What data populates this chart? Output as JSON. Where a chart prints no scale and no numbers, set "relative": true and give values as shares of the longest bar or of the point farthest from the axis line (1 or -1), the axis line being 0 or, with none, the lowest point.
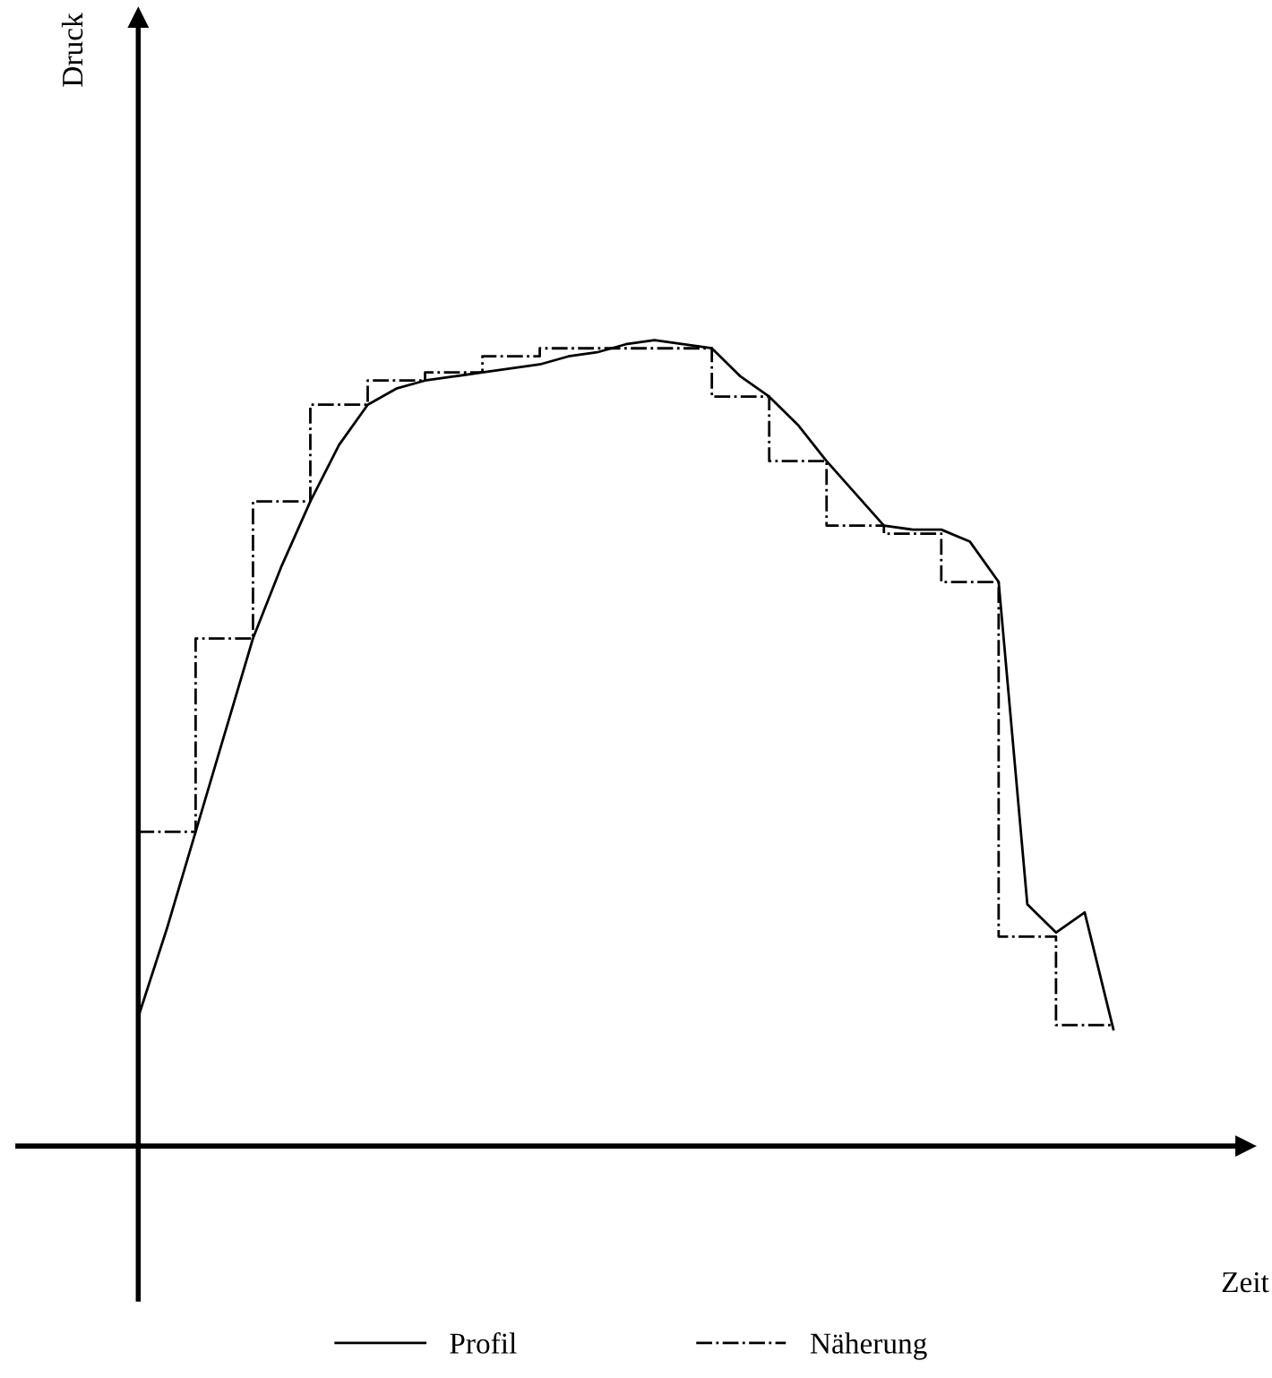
{
  "chart_data": {
    "type": "line",
    "relative": true,
    "annotations": [
      "Druck",
      "Zeit"
    ],
    "legend": "bottom",
    "categories": [
      null,
      null,
      null,
      null,
      null,
      null,
      null,
      null,
      null,
      null,
      null,
      null,
      null,
      null,
      null,
      null,
      null,
      null,
      null,
      null,
      null,
      null,
      null,
      null,
      null,
      null,
      null,
      null,
      null,
      null,
      null,
      null,
      null,
      null,
      null
    ],
    "series": [
      {
        "name": "Profil",
        "color": "#000000",
        "line_style": "solid",
        "values": [
          0.16,
          0.27,
          0.39,
          0.51,
          0.63,
          0.72,
          0.8,
          0.87,
          0.92,
          0.94,
          0.95,
          0.955,
          0.96,
          0.965,
          0.97,
          0.98,
          0.985,
          0.995,
          1.0,
          0.995,
          0.99,
          0.955,
          0.93,
          0.895,
          0.85,
          0.81,
          0.77,
          0.765,
          0.765,
          0.75,
          0.7,
          0.3,
          0.265,
          0.29,
          0.145
        ]
      },
      {
        "name": "Näherung",
        "type": "step",
        "color": "#000000",
        "line_style": "dashed",
        "values": [
          0.39,
          0.39,
          0.63,
          0.63,
          0.8,
          0.8,
          0.92,
          0.92,
          0.95,
          0.95,
          0.96,
          0.96,
          0.98,
          0.98,
          0.99,
          0.99,
          0.99,
          0.99,
          0.99,
          0.99,
          0.93,
          0.93,
          0.85,
          0.85,
          0.77,
          0.77,
          0.76,
          0.76,
          0.7,
          0.7,
          0.26,
          0.26,
          0.15,
          0.15,
          0.15
        ]
      }
    ]
  }
}
